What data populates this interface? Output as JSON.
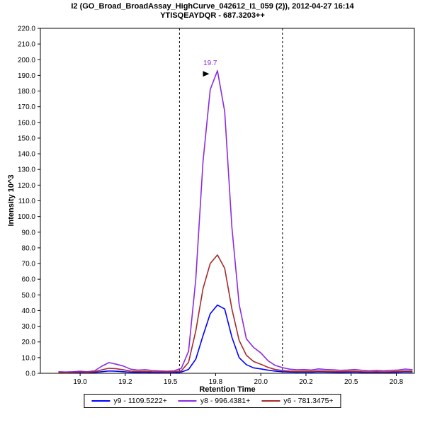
{
  "chart_data": {
    "type": "line",
    "title": "I2 (GO_Broad_BroadAssay_HighCurve_042612_I1_059 (2)), 2012-04-27 16:14",
    "subtitle": "YTISQEAYDQR - 687.3203++",
    "xlabel": "Retention Time",
    "ylabel": "Intensity 10^3",
    "xlim": [
      18.78,
      20.85
    ],
    "ylim": [
      0,
      220
    ],
    "ytick_step": 10,
    "ytick_decimals": 1,
    "xticks": [
      19.0,
      19.25,
      19.5,
      19.75,
      20.0,
      20.25,
      20.5,
      20.75
    ],
    "xtick_labels": [
      "19.0",
      "19.2",
      "19.5",
      "19.8",
      "20.0",
      "20.2",
      "20.5",
      "20.8"
    ],
    "grid": false,
    "legend_position": "bottom-center",
    "integration_boundaries": [
      19.55,
      20.12
    ],
    "annotation": {
      "text": "19.7",
      "x": 19.72,
      "y": 196.5,
      "arrow_x": 19.715,
      "arrow_y": 191
    },
    "series": [
      {
        "key": "y9",
        "name": "y9 - 1109.5222+",
        "color": "#0000FF",
        "points": [
          [
            18.88,
            0.4
          ],
          [
            18.92,
            0.5
          ],
          [
            18.96,
            0.4
          ],
          [
            19.0,
            0.5
          ],
          [
            19.04,
            0.4
          ],
          [
            19.08,
            0.6
          ],
          [
            19.12,
            1.0
          ],
          [
            19.16,
            1.5
          ],
          [
            19.2,
            1.3
          ],
          [
            19.24,
            1.0
          ],
          [
            19.28,
            0.7
          ],
          [
            19.32,
            0.6
          ],
          [
            19.36,
            0.7
          ],
          [
            19.4,
            0.5
          ],
          [
            19.44,
            0.5
          ],
          [
            19.48,
            0.4
          ],
          [
            19.52,
            0.5
          ],
          [
            19.56,
            0.8
          ],
          [
            19.6,
            2.5
          ],
          [
            19.64,
            9
          ],
          [
            19.68,
            24
          ],
          [
            19.72,
            38
          ],
          [
            19.76,
            43.5
          ],
          [
            19.8,
            41
          ],
          [
            19.84,
            23
          ],
          [
            19.88,
            10
          ],
          [
            19.92,
            5.5
          ],
          [
            19.96,
            3.5
          ],
          [
            20.0,
            2.8
          ],
          [
            20.04,
            2.0
          ],
          [
            20.08,
            1.4
          ],
          [
            20.12,
            1.0
          ],
          [
            20.16,
            0.8
          ],
          [
            20.2,
            0.7
          ],
          [
            20.24,
            0.8
          ],
          [
            20.28,
            0.7
          ],
          [
            20.32,
            0.9
          ],
          [
            20.36,
            0.8
          ],
          [
            20.4,
            0.7
          ],
          [
            20.44,
            0.6
          ],
          [
            20.48,
            0.7
          ],
          [
            20.52,
            0.8
          ],
          [
            20.56,
            0.6
          ],
          [
            20.6,
            0.5
          ],
          [
            20.64,
            0.6
          ],
          [
            20.68,
            0.5
          ],
          [
            20.72,
            0.6
          ],
          [
            20.76,
            0.7
          ],
          [
            20.8,
            0.9
          ],
          [
            20.84,
            0.8
          ]
        ]
      },
      {
        "key": "y8",
        "name": "y8 - 996.4381+",
        "color": "#8A2BE2",
        "points": [
          [
            18.88,
            1.0
          ],
          [
            18.92,
            0.8
          ],
          [
            18.96,
            1.0
          ],
          [
            19.0,
            1.3
          ],
          [
            19.04,
            1.0
          ],
          [
            19.08,
            1.6
          ],
          [
            19.12,
            4.5
          ],
          [
            19.16,
            6.8
          ],
          [
            19.2,
            5.8
          ],
          [
            19.24,
            4.6
          ],
          [
            19.28,
            2.6
          ],
          [
            19.32,
            2.0
          ],
          [
            19.36,
            2.3
          ],
          [
            19.4,
            1.8
          ],
          [
            19.44,
            1.5
          ],
          [
            19.48,
            1.3
          ],
          [
            19.52,
            1.6
          ],
          [
            19.56,
            3.2
          ],
          [
            19.6,
            14
          ],
          [
            19.64,
            60
          ],
          [
            19.68,
            135
          ],
          [
            19.72,
            181
          ],
          [
            19.76,
            193
          ],
          [
            19.8,
            167
          ],
          [
            19.84,
            93
          ],
          [
            19.88,
            44
          ],
          [
            19.92,
            22
          ],
          [
            19.96,
            16.5
          ],
          [
            20.0,
            13
          ],
          [
            20.04,
            8
          ],
          [
            20.08,
            5
          ],
          [
            20.12,
            3.6
          ],
          [
            20.16,
            2.6
          ],
          [
            20.2,
            2.2
          ],
          [
            20.24,
            2.4
          ],
          [
            20.28,
            2.1
          ],
          [
            20.32,
            2.8
          ],
          [
            20.36,
            2.4
          ],
          [
            20.4,
            2.2
          ],
          [
            20.44,
            1.9
          ],
          [
            20.48,
            2.1
          ],
          [
            20.52,
            2.4
          ],
          [
            20.56,
            1.9
          ],
          [
            20.6,
            1.6
          ],
          [
            20.64,
            1.9
          ],
          [
            20.68,
            1.6
          ],
          [
            20.72,
            1.9
          ],
          [
            20.76,
            2.1
          ],
          [
            20.8,
            2.7
          ],
          [
            20.84,
            2.3
          ]
        ]
      },
      {
        "key": "y6",
        "name": "y6 - 781.3475+",
        "color": "#A52A2A",
        "points": [
          [
            18.88,
            0.6
          ],
          [
            18.92,
            0.5
          ],
          [
            18.96,
            0.6
          ],
          [
            19.0,
            0.8
          ],
          [
            19.04,
            0.6
          ],
          [
            19.08,
            1.0
          ],
          [
            19.12,
            2.2
          ],
          [
            19.16,
            3.2
          ],
          [
            19.2,
            2.9
          ],
          [
            19.24,
            2.2
          ],
          [
            19.28,
            1.4
          ],
          [
            19.32,
            1.1
          ],
          [
            19.36,
            1.2
          ],
          [
            19.4,
            1.0
          ],
          [
            19.44,
            0.9
          ],
          [
            19.48,
            0.8
          ],
          [
            19.52,
            1.0
          ],
          [
            19.56,
            1.6
          ],
          [
            19.6,
            7
          ],
          [
            19.64,
            27
          ],
          [
            19.68,
            54
          ],
          [
            19.72,
            70
          ],
          [
            19.76,
            75.5
          ],
          [
            19.8,
            67
          ],
          [
            19.84,
            41
          ],
          [
            19.88,
            21
          ],
          [
            19.92,
            11.5
          ],
          [
            19.96,
            7.5
          ],
          [
            20.0,
            5.8
          ],
          [
            20.04,
            3.8
          ],
          [
            20.08,
            2.4
          ],
          [
            20.12,
            1.8
          ],
          [
            20.16,
            1.4
          ],
          [
            20.2,
            1.2
          ],
          [
            20.24,
            1.3
          ],
          [
            20.28,
            1.2
          ],
          [
            20.32,
            1.5
          ],
          [
            20.36,
            1.3
          ],
          [
            20.4,
            1.2
          ],
          [
            20.44,
            1.0
          ],
          [
            20.48,
            1.2
          ],
          [
            20.52,
            1.3
          ],
          [
            20.56,
            1.0
          ],
          [
            20.6,
            0.9
          ],
          [
            20.64,
            1.0
          ],
          [
            20.68,
            0.9
          ],
          [
            20.72,
            1.0
          ],
          [
            20.76,
            1.2
          ],
          [
            20.8,
            1.5
          ],
          [
            20.84,
            1.3
          ]
        ]
      }
    ]
  }
}
